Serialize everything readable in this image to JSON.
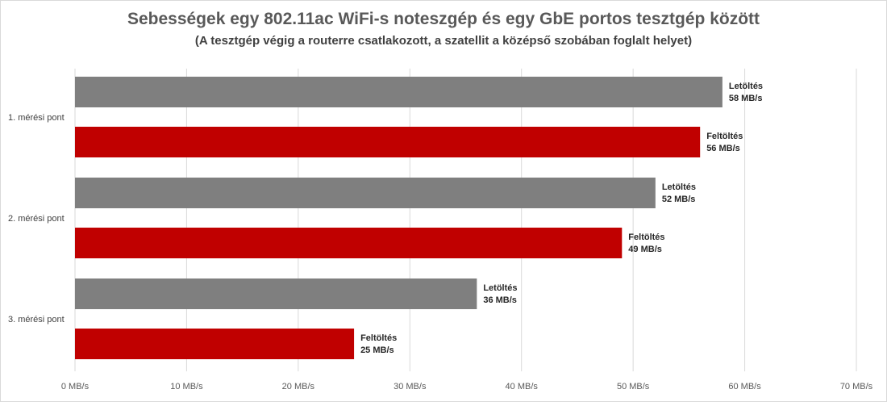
{
  "chart_data": {
    "type": "bar",
    "orientation": "horizontal",
    "title": "Sebességek egy 802.11ac WiFi-s noteszgép és egy GbE portos tesztgép között",
    "subtitle": "(A tesztgép végig a routerre csatlakozott, a szatellit a középső szobában foglalt helyet)",
    "categories": [
      "1. mérési pont",
      "2. mérési pont",
      "3. mérési pont"
    ],
    "series": [
      {
        "name": "Letöltés",
        "color": "#7f7f7f",
        "values": [
          58,
          52,
          36
        ]
      },
      {
        "name": "Feltöltés",
        "color": "#c00000",
        "values": [
          56,
          49,
          25
        ]
      }
    ],
    "unit": "MB/s",
    "xlim": [
      0,
      70
    ],
    "xticks": [
      0,
      10,
      20,
      30,
      40,
      50,
      60,
      70
    ],
    "xtick_labels": [
      "0 MB/s",
      "10 MB/s",
      "20 MB/s",
      "30 MB/s",
      "40 MB/s",
      "50 MB/s",
      "60 MB/s",
      "70 MB/s"
    ],
    "data_labels": [
      [
        {
          "name": "Letöltés",
          "value": "58 MB/s"
        },
        {
          "name": "Feltöltés",
          "value": "56 MB/s"
        }
      ],
      [
        {
          "name": "Letöltés",
          "value": "52 MB/s"
        },
        {
          "name": "Feltöltés",
          "value": "49 MB/s"
        }
      ],
      [
        {
          "name": "Letöltés",
          "value": "36 MB/s"
        },
        {
          "name": "Feltöltés",
          "value": "25 MB/s"
        }
      ]
    ],
    "grid": "vertical",
    "legend": "none"
  }
}
